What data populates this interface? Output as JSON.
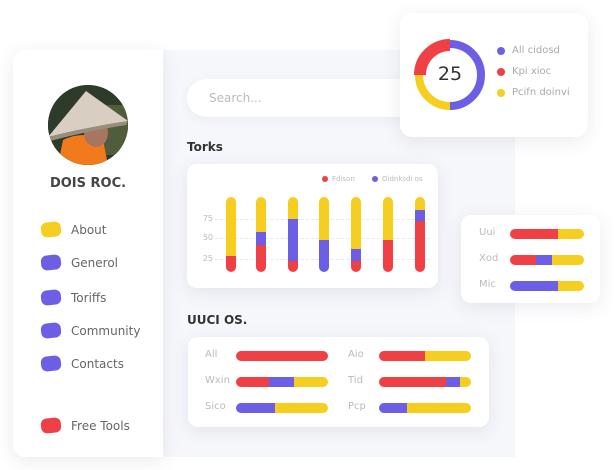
{
  "colors": {
    "red": "#ef4046",
    "purple": "#6c5fe6",
    "yellow": "#f5ce1f"
  },
  "profile": {
    "name": "DOIS ROC."
  },
  "sidebar": {
    "items": [
      {
        "label": "About",
        "color": "yellow"
      },
      {
        "label": "Generol",
        "color": "purple"
      },
      {
        "label": "Toriffs",
        "color": "purple"
      },
      {
        "label": "Community",
        "color": "purple"
      },
      {
        "label": "Contacts",
        "color": "purple"
      },
      {
        "label": "Free Tools",
        "color": "red"
      }
    ]
  },
  "search": {
    "placeholder": "Search..."
  },
  "torks": {
    "title": "Torks"
  },
  "uuci": {
    "title": "UUCI OS."
  },
  "chart_data": [
    {
      "type": "bar",
      "stacked": true,
      "title": "Torks",
      "legend": [
        {
          "name": "Fdison",
          "color": "red"
        },
        {
          "name": "Oidnksdi os",
          "color": "purple"
        }
      ],
      "yticks": [
        "75",
        "50",
        "25"
      ],
      "legend_position": "top-right",
      "grid": true,
      "bars": [
        {
          "red": 22,
          "purple": 0,
          "yellow": 78
        },
        {
          "red": 36,
          "purple": 18,
          "yellow": 46
        },
        {
          "red": 15,
          "purple": 56,
          "yellow": 29
        },
        {
          "red": 0,
          "purple": 43,
          "yellow": 57
        },
        {
          "red": 15,
          "purple": 16,
          "yellow": 69
        },
        {
          "red": 43,
          "purple": 0,
          "yellow": 57
        },
        {
          "red": 68,
          "purple": 15,
          "yellow": 17
        }
      ]
    },
    {
      "type": "pie",
      "donut": true,
      "center_label": "25",
      "slices": [
        {
          "name": "All cidosd",
          "value": 50,
          "color": "purple"
        },
        {
          "name": "Pcifn doinvi",
          "value": 25,
          "color": "yellow"
        },
        {
          "name": "Kpi xioc",
          "value": 25,
          "color": "red"
        }
      ],
      "legend": [
        "All cidosd",
        "Kpi xioc",
        "Pcifn doinvi"
      ]
    },
    {
      "type": "bar",
      "orientation": "horizontal",
      "stacked": true,
      "rows": [
        {
          "label": "Uui",
          "red": 65,
          "purple": 0,
          "yellow": 35
        },
        {
          "label": "Xod",
          "red": 35,
          "purple": 22,
          "yellow": 43
        },
        {
          "label": "Mic",
          "red": 0,
          "purple": 65,
          "yellow": 35
        }
      ]
    },
    {
      "type": "bar",
      "orientation": "horizontal",
      "stacked": true,
      "title": "UUCI OS.",
      "rows": [
        {
          "label": "All",
          "red": 100,
          "purple": 0,
          "yellow": 0
        },
        {
          "label": "Wxin",
          "red": 36,
          "purple": 27,
          "yellow": 37
        },
        {
          "label": "Sico",
          "red": 0,
          "purple": 42,
          "yellow": 58
        },
        {
          "label": "Aio",
          "red": 50,
          "purple": 0,
          "yellow": 50
        },
        {
          "label": "Tid",
          "red": 73,
          "purple": 15,
          "yellow": 12
        },
        {
          "label": "Pcp",
          "red": 0,
          "purple": 30,
          "yellow": 70
        }
      ]
    }
  ]
}
